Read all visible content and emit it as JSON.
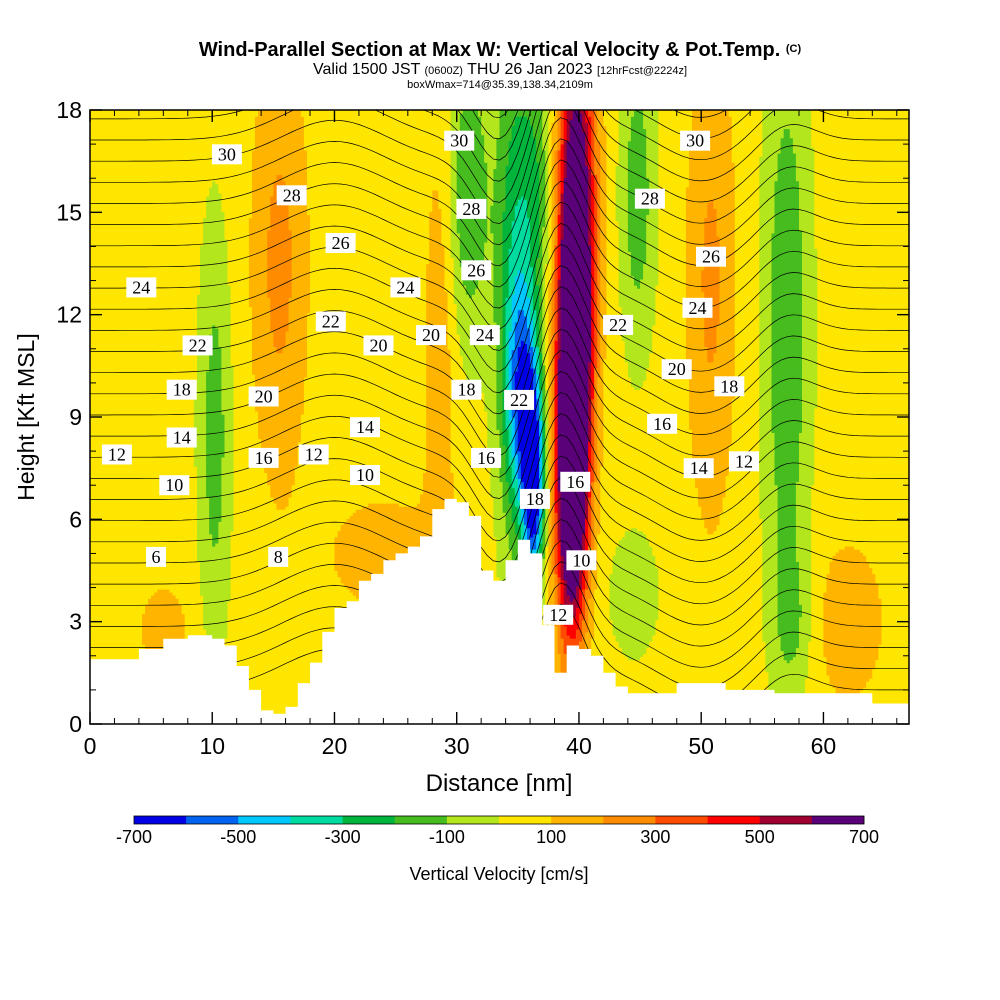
{
  "chart_data": {
    "type": "heatmap",
    "title": "Wind-Parallel Section at Max W: Vertical Velocity & Pot.Temp.",
    "title_mark": "(C)",
    "subtitle": {
      "valid_pre": "Valid 1500 JST",
      "utc": "(0600Z)",
      "valid_post": "THU 26 Jan 2023",
      "forecast": "[12hrFcst@2224z]"
    },
    "info": "boxWmax=714@35.39,138.34,2109m",
    "xlabel": "Distance [nm]",
    "ylabel": "Height [Kft MSL]",
    "xlim": [
      0,
      67
    ],
    "ylim": [
      0,
      18
    ],
    "xticks": [
      0,
      10,
      20,
      30,
      40,
      50,
      60
    ],
    "yticks": [
      0,
      3,
      6,
      9,
      12,
      15,
      18
    ],
    "colorbar": {
      "label": "Vertical Velocity [cm/s]",
      "tick_labels": [
        "-700",
        "-500",
        "-300",
        "-100",
        "100",
        "300",
        "500",
        "700"
      ],
      "levels": [
        -700,
        -600,
        -500,
        -400,
        -300,
        -200,
        -100,
        0,
        100,
        200,
        300,
        400,
        500,
        600,
        700
      ],
      "colors": [
        "#0000e6",
        "#0064f0",
        "#00c8ff",
        "#00dca0",
        "#00b43c",
        "#46bc1e",
        "#b4e61e",
        "#ffe600",
        "#ffb400",
        "#ff8c00",
        "#ff4b00",
        "#ff0000",
        "#a00032",
        "#5a0078"
      ]
    },
    "w_features": [
      {
        "x": 10.2,
        "z": 8.5,
        "sx": 0.9,
        "sz": 4.2,
        "w": -190
      },
      {
        "x": 15.5,
        "z": 13.5,
        "sx": 1.6,
        "sz": 4.5,
        "w": 190
      },
      {
        "x": 28.6,
        "z": 11.0,
        "sx": 0.9,
        "sz": 5.0,
        "w": 130
      },
      {
        "x": 31.0,
        "z": 15.5,
        "sx": 1.2,
        "sz": 3.0,
        "w": -230
      },
      {
        "x": 34.7,
        "z": 13.0,
        "sx": 1.1,
        "sz": 5.5,
        "w": -310
      },
      {
        "x": 35.5,
        "z": 9.5,
        "sx": 0.9,
        "sz": 2.3,
        "w": -480
      },
      {
        "x": 36.3,
        "z": 7.0,
        "sx": 0.6,
        "sz": 2.0,
        "w": -700
      },
      {
        "x": 36.5,
        "z": 15.8,
        "sx": 0.9,
        "sz": 2.5,
        "w": -200
      },
      {
        "x": 39.9,
        "z": 15.0,
        "sx": 1.1,
        "sz": 4.5,
        "w": 560
      },
      {
        "x": 39.6,
        "z": 10.5,
        "sx": 0.9,
        "sz": 4.0,
        "w": 740
      },
      {
        "x": 39.3,
        "z": 6.5,
        "sx": 0.9,
        "sz": 3.2,
        "w": 560
      },
      {
        "x": 44.8,
        "z": 15.5,
        "sx": 1.0,
        "sz": 3.2,
        "w": -200
      },
      {
        "x": 44.5,
        "z": 3.8,
        "sx": 1.3,
        "sz": 1.2,
        "w": -140
      },
      {
        "x": 50.8,
        "z": 13.0,
        "sx": 1.4,
        "sz": 5.0,
        "w": 180
      },
      {
        "x": 57.0,
        "z": 11.5,
        "sx": 1.3,
        "sz": 6.0,
        "w": -230
      },
      {
        "x": 57.5,
        "z": 3.0,
        "sx": 1.2,
        "sz": 1.5,
        "w": -130
      },
      {
        "x": 6.0,
        "z": 2.8,
        "sx": 1.5,
        "sz": 1.0,
        "w": 120
      },
      {
        "x": 24.0,
        "z": 5.0,
        "sx": 4.0,
        "sz": 1.5,
        "w": 100
      },
      {
        "x": 62.0,
        "z": 3.0,
        "sx": 2.5,
        "sz": 2.0,
        "w": 110
      },
      {
        "x": 2.0,
        "z": 17.0,
        "sx": 3.0,
        "sz": 3.0,
        "w": -20
      }
    ],
    "terrain": [
      [
        0,
        1.9
      ],
      [
        2,
        1.9
      ],
      [
        4,
        2.2
      ],
      [
        6,
        2.5
      ],
      [
        8,
        2.6
      ],
      [
        10,
        2.5
      ],
      [
        11,
        2.3
      ],
      [
        12,
        1.7
      ],
      [
        13,
        1.0
      ],
      [
        14,
        0.4
      ],
      [
        15,
        0.3
      ],
      [
        16,
        0.5
      ],
      [
        17,
        1.2
      ],
      [
        18,
        1.8
      ],
      [
        19,
        2.7
      ],
      [
        20,
        3.4
      ],
      [
        21,
        3.6
      ],
      [
        22,
        4.2
      ],
      [
        23,
        4.4
      ],
      [
        24,
        4.8
      ],
      [
        25,
        5.0
      ],
      [
        26,
        5.2
      ],
      [
        27,
        5.5
      ],
      [
        28,
        6.3
      ],
      [
        29,
        6.6
      ],
      [
        30,
        6.5
      ],
      [
        31,
        6.1
      ],
      [
        32,
        4.5
      ],
      [
        33,
        4.2
      ],
      [
        34,
        4.8
      ],
      [
        35,
        5.4
      ],
      [
        36,
        5.0
      ],
      [
        37,
        2.9
      ],
      [
        38,
        1.5
      ],
      [
        39,
        2.3
      ],
      [
        40,
        2.2
      ],
      [
        41,
        2.0
      ],
      [
        42,
        1.5
      ],
      [
        43,
        1.1
      ],
      [
        44,
        0.9
      ],
      [
        46,
        0.9
      ],
      [
        48,
        1.2
      ],
      [
        50,
        1.2
      ],
      [
        52,
        1.0
      ],
      [
        54,
        1.0
      ],
      [
        56,
        0.9
      ],
      [
        58,
        0.9
      ],
      [
        60,
        0.9
      ],
      [
        62,
        0.9
      ],
      [
        64,
        0.6
      ],
      [
        67,
        0.6
      ]
    ],
    "theta_levels": [
      6,
      8,
      10,
      12,
      14,
      16,
      18,
      20,
      22,
      24,
      26,
      28,
      30
    ],
    "theta_labels": [
      {
        "text": "30",
        "x": 11.2,
        "z": 16.7
      },
      {
        "text": "28",
        "x": 16.5,
        "z": 15.5
      },
      {
        "text": "26",
        "x": 20.5,
        "z": 14.1
      },
      {
        "text": "24",
        "x": 4.2,
        "z": 12.8
      },
      {
        "text": "24",
        "x": 25.8,
        "z": 12.8
      },
      {
        "text": "22",
        "x": 8.8,
        "z": 11.1
      },
      {
        "text": "22",
        "x": 19.7,
        "z": 11.8
      },
      {
        "text": "20",
        "x": 23.6,
        "z": 11.1
      },
      {
        "text": "20",
        "x": 27.9,
        "z": 11.4
      },
      {
        "text": "20",
        "x": 14.2,
        "z": 9.6
      },
      {
        "text": "18",
        "x": 7.5,
        "z": 9.8
      },
      {
        "text": "14",
        "x": 7.5,
        "z": 8.4
      },
      {
        "text": "12",
        "x": 2.2,
        "z": 7.9
      },
      {
        "text": "10",
        "x": 6.9,
        "z": 7.0
      },
      {
        "text": "16",
        "x": 14.2,
        "z": 7.8
      },
      {
        "text": "12",
        "x": 18.3,
        "z": 7.9
      },
      {
        "text": "14",
        "x": 22.5,
        "z": 8.7
      },
      {
        "text": "10",
        "x": 22.5,
        "z": 7.3
      },
      {
        "text": "8",
        "x": 15.4,
        "z": 4.9
      },
      {
        "text": "6",
        "x": 5.4,
        "z": 4.9
      },
      {
        "text": "30",
        "x": 30.2,
        "z": 17.1
      },
      {
        "text": "28",
        "x": 31.2,
        "z": 15.1
      },
      {
        "text": "26",
        "x": 31.6,
        "z": 13.3
      },
      {
        "text": "24",
        "x": 32.3,
        "z": 11.4
      },
      {
        "text": "18",
        "x": 30.8,
        "z": 9.8
      },
      {
        "text": "22",
        "x": 35.1,
        "z": 9.5
      },
      {
        "text": "16",
        "x": 32.4,
        "z": 7.8
      },
      {
        "text": "18",
        "x": 36.4,
        "z": 6.6
      },
      {
        "text": "16",
        "x": 39.7,
        "z": 7.1
      },
      {
        "text": "10",
        "x": 40.2,
        "z": 4.8
      },
      {
        "text": "12",
        "x": 38.3,
        "z": 3.2
      },
      {
        "text": "30",
        "x": 49.5,
        "z": 17.1
      },
      {
        "text": "28",
        "x": 45.8,
        "z": 15.4
      },
      {
        "text": "26",
        "x": 50.8,
        "z": 13.7
      },
      {
        "text": "24",
        "x": 49.7,
        "z": 12.2
      },
      {
        "text": "22",
        "x": 43.2,
        "z": 11.7
      },
      {
        "text": "20",
        "x": 48.0,
        "z": 10.4
      },
      {
        "text": "18",
        "x": 52.3,
        "z": 9.9
      },
      {
        "text": "16",
        "x": 46.8,
        "z": 8.8
      },
      {
        "text": "14",
        "x": 49.8,
        "z": 7.5
      },
      {
        "text": "12",
        "x": 53.5,
        "z": 7.7
      }
    ]
  }
}
